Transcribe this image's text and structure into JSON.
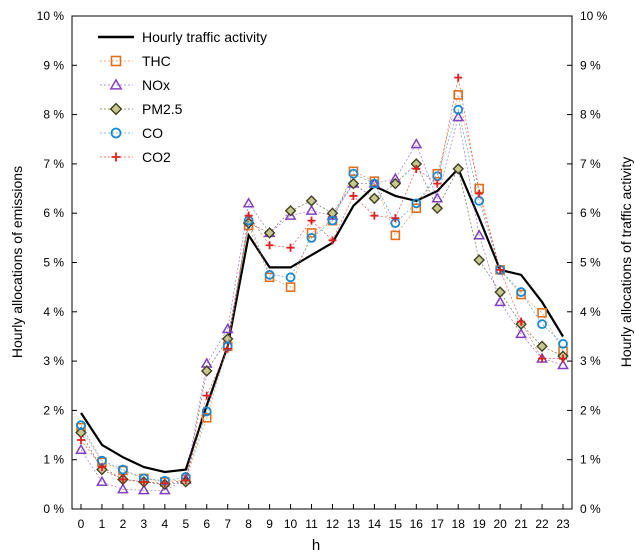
{
  "chart_data": {
    "type": "line",
    "xlabel": "h",
    "ylabel_left": "Hourly allocations of emissions",
    "ylabel_right": "Hourly allocations of traffic activity",
    "ylim": [
      0,
      10
    ],
    "xlim": [
      0,
      23
    ],
    "x": [
      0,
      1,
      2,
      3,
      4,
      5,
      6,
      7,
      8,
      9,
      10,
      11,
      12,
      13,
      14,
      15,
      16,
      17,
      18,
      19,
      20,
      21,
      22,
      23
    ],
    "y_ticks": [
      "0 %",
      "1 %",
      "2 %",
      "3 %",
      "4 %",
      "5 %",
      "6 %",
      "7 %",
      "8 %",
      "9 %",
      "10 %"
    ],
    "x_ticks": [
      "0",
      "1",
      "2",
      "3",
      "4",
      "5",
      "6",
      "7",
      "8",
      "9",
      "10",
      "11",
      "12",
      "13",
      "14",
      "15",
      "16",
      "17",
      "18",
      "19",
      "20",
      "21",
      "22",
      "23"
    ],
    "grid": false,
    "legend_position": "top-left",
    "series": [
      {
        "name": "Hourly traffic activity",
        "style": "line",
        "color": "#000000",
        "values": [
          1.95,
          1.3,
          1.05,
          0.85,
          0.75,
          0.8,
          2.1,
          3.3,
          5.55,
          4.9,
          4.9,
          5.15,
          5.4,
          6.15,
          6.55,
          6.35,
          6.25,
          6.45,
          6.9,
          5.9,
          4.85,
          4.75,
          4.2,
          3.5
        ]
      },
      {
        "name": "THC",
        "style": "marker",
        "marker": "square",
        "color": "#e07020",
        "values": [
          1.65,
          0.95,
          0.78,
          0.62,
          0.55,
          0.6,
          1.85,
          3.3,
          5.75,
          4.7,
          4.5,
          5.6,
          5.85,
          6.85,
          6.65,
          5.55,
          6.1,
          6.8,
          8.4,
          6.5,
          4.85,
          4.35,
          3.98,
          3.2
        ]
      },
      {
        "name": "NOx",
        "style": "marker",
        "marker": "triangle",
        "color": "#8040c0",
        "values": [
          1.2,
          0.55,
          0.4,
          0.38,
          0.38,
          0.6,
          2.95,
          3.65,
          6.2,
          5.6,
          5.95,
          6.05,
          5.95,
          6.6,
          6.6,
          6.7,
          7.4,
          6.3,
          7.95,
          5.55,
          4.2,
          3.55,
          3.05,
          2.92
        ]
      },
      {
        "name": "PM2.5",
        "style": "marker",
        "marker": "diamond",
        "color": "#404020",
        "values": [
          1.55,
          0.8,
          0.6,
          0.55,
          0.5,
          0.55,
          2.8,
          3.45,
          5.8,
          5.6,
          6.05,
          6.25,
          6.0,
          6.6,
          6.3,
          6.6,
          7.0,
          6.1,
          6.9,
          5.05,
          4.4,
          3.75,
          3.3,
          3.1
        ]
      },
      {
        "name": "CO",
        "style": "marker",
        "marker": "circle",
        "color": "#1a8ad0",
        "values": [
          1.7,
          0.98,
          0.8,
          0.62,
          0.57,
          0.65,
          1.98,
          3.3,
          5.85,
          4.75,
          4.7,
          5.5,
          5.85,
          6.8,
          6.6,
          5.8,
          6.2,
          6.75,
          8.1,
          6.25,
          4.85,
          4.4,
          3.75,
          3.35
        ]
      },
      {
        "name": "CO2",
        "style": "marker",
        "marker": "plus",
        "color": "#e02020",
        "values": [
          1.4,
          0.85,
          0.6,
          0.55,
          0.52,
          0.58,
          2.3,
          3.25,
          5.95,
          5.35,
          5.3,
          5.85,
          5.45,
          6.35,
          5.95,
          5.9,
          6.9,
          6.6,
          8.75,
          6.4,
          4.85,
          3.8,
          3.05,
          3.05
        ]
      }
    ]
  }
}
